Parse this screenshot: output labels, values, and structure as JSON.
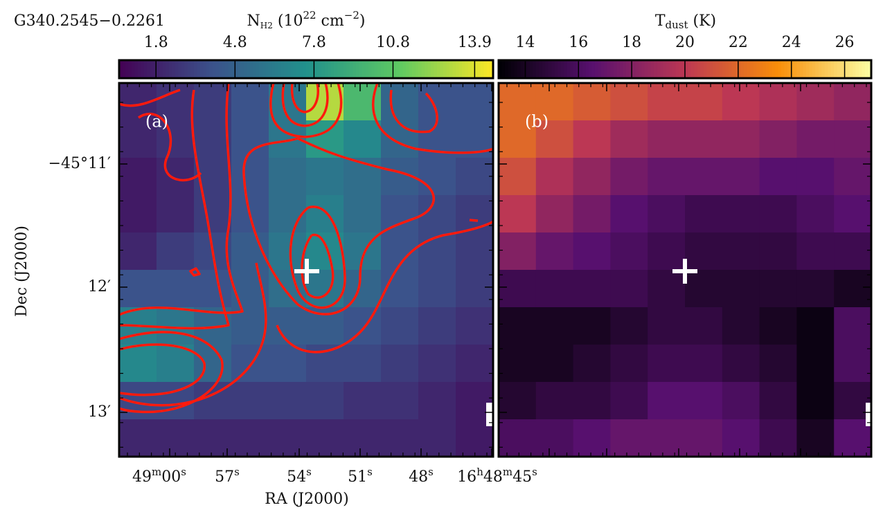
{
  "title": "G340.2545−0.2261",
  "panels": [
    {
      "label": "(a)",
      "colorbar": {
        "symbol": "N",
        "subscript": "H2",
        "open": " (10",
        "exponent": "22",
        "unit": " cm",
        "unit_exponent": "−2",
        "close": ")",
        "colormap": "viridis",
        "lim": [
          0.4,
          14.6
        ],
        "ticks": [
          1.8,
          4.8,
          7.8,
          10.8,
          13.9
        ]
      },
      "grid": [
        [
          2,
          2.5,
          3,
          4,
          6,
          13,
          10,
          5,
          4,
          4
        ],
        [
          2,
          2.5,
          3,
          4,
          6,
          8,
          7,
          5,
          4,
          4
        ],
        [
          1.5,
          2,
          3,
          4,
          5.5,
          6,
          5.5,
          4.5,
          4,
          3.5
        ],
        [
          1.5,
          2,
          3,
          4,
          5.5,
          6.5,
          5.5,
          4,
          3.5,
          3
        ],
        [
          2,
          3,
          3.5,
          4.5,
          6,
          7,
          6,
          4,
          3.5,
          3
        ],
        [
          4,
          4,
          4,
          4.5,
          5.5,
          6,
          5,
          4,
          3.5,
          3
        ],
        [
          6.5,
          6,
          5,
          4.5,
          4.5,
          4.5,
          4,
          3.5,
          3,
          2.5
        ],
        [
          7,
          6.5,
          5,
          4,
          4,
          3.5,
          3.5,
          3,
          2.5,
          2
        ],
        [
          3.5,
          3.5,
          3,
          3,
          3,
          3,
          2.5,
          2.5,
          2,
          1.5
        ],
        [
          2,
          2,
          2,
          2,
          2,
          2,
          2,
          2,
          2,
          1.5
        ]
      ]
    },
    {
      "label": "(b)",
      "colorbar": {
        "symbol": "T",
        "subscript": "dust",
        "open": " (K)",
        "colormap": "inferno",
        "lim": [
          13,
          27
        ],
        "ticks": [
          14,
          16,
          18,
          20,
          22,
          24,
          26
        ]
      },
      "grid": [
        [
          22,
          22,
          21.5,
          21,
          20.5,
          20.5,
          20,
          19.5,
          19,
          18.5
        ],
        [
          22,
          21,
          20,
          19,
          18.5,
          18.5,
          18.5,
          18,
          17.5,
          17.5
        ],
        [
          21,
          19.5,
          18.5,
          17.5,
          17,
          17,
          17,
          16.5,
          16.5,
          17
        ],
        [
          20,
          18.5,
          17.5,
          16.5,
          16,
          15.5,
          15.5,
          15.5,
          16,
          16.5
        ],
        [
          18,
          17,
          16.5,
          16,
          15.5,
          15,
          15,
          15,
          15.5,
          15.5
        ],
        [
          15.5,
          15.5,
          15.5,
          15.5,
          15,
          14.5,
          14.5,
          14.5,
          14.5,
          14
        ],
        [
          14,
          14,
          14,
          14.5,
          15,
          15,
          14.5,
          14,
          13.5,
          16
        ],
        [
          14,
          14,
          14.5,
          15,
          15.5,
          15.5,
          15,
          14.5,
          13.5,
          16
        ],
        [
          14.5,
          15,
          15,
          15.5,
          16.5,
          16.5,
          16,
          15,
          13.5,
          15
        ],
        [
          16,
          16,
          16.5,
          17,
          17,
          17,
          16.5,
          15.5,
          14,
          16.5
        ]
      ]
    }
  ],
  "x_axis": {
    "label": "RA (J2000)",
    "ticks": [
      [
        "49",
        "m",
        "00",
        "s"
      ],
      [
        "57",
        "s"
      ],
      [
        "54",
        "s"
      ],
      [
        "51",
        "s"
      ],
      [
        "48",
        "s"
      ],
      [
        "16",
        "h",
        "48",
        "m",
        "45",
        "s"
      ]
    ]
  },
  "y_axis": {
    "label": "Dec (J2000)",
    "ticks": [
      "−45°11′",
      "12′",
      "13′"
    ]
  }
}
